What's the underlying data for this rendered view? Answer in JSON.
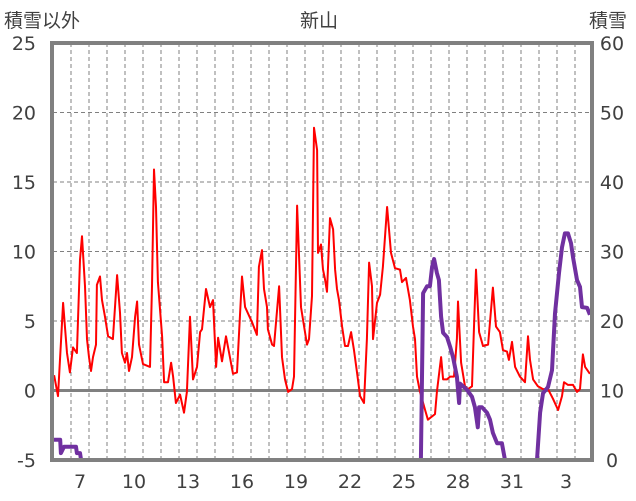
{
  "chart_data": {
    "type": "line",
    "title": "新山",
    "ylabel_left": "積雪以外",
    "ylabel_right": "積雪",
    "xlim": [
      6,
      36
    ],
    "ylim_left": [
      -5,
      25
    ],
    "ylim_right": [
      0,
      60
    ],
    "yticks_left": [
      "25",
      "20",
      "15",
      "10",
      "5",
      "0",
      "-5"
    ],
    "yticks_right": [
      "60",
      "50",
      "40",
      "30",
      "20",
      "10",
      "0"
    ],
    "xticks": [
      {
        "day": 7,
        "label": "7"
      },
      {
        "day": 10,
        "label": "10"
      },
      {
        "day": 13,
        "label": "13"
      },
      {
        "day": 16,
        "label": "16"
      },
      {
        "day": 19,
        "label": "19"
      },
      {
        "day": 22,
        "label": "22"
      },
      {
        "day": 25,
        "label": "25"
      },
      {
        "day": 28,
        "label": "28"
      },
      {
        "day": 31,
        "label": "31"
      },
      {
        "day": 34,
        "label": "3"
      }
    ],
    "grid": true,
    "colors": {
      "other": "#ff0000",
      "snow": "#7030a0",
      "frame": "#808080",
      "grid": "#808080"
    },
    "series": [
      {
        "name": "積雪以外",
        "axis": "left",
        "points": [
          [
            6.06,
            1.1
          ],
          [
            6.28,
            -0.4
          ],
          [
            6.56,
            6.3
          ],
          [
            6.78,
            2.7
          ],
          [
            6.94,
            1.3
          ],
          [
            7.11,
            3.1
          ],
          [
            7.33,
            2.7
          ],
          [
            7.5,
            9.4
          ],
          [
            7.61,
            11.1
          ],
          [
            7.78,
            7.5
          ],
          [
            7.89,
            3.7
          ],
          [
            8.0,
            2.4
          ],
          [
            8.11,
            1.4
          ],
          [
            8.22,
            2.4
          ],
          [
            8.39,
            3.3
          ],
          [
            8.44,
            7.6
          ],
          [
            8.61,
            8.2
          ],
          [
            8.72,
            6.5
          ],
          [
            8.89,
            5.3
          ],
          [
            9.06,
            3.9
          ],
          [
            9.33,
            3.7
          ],
          [
            9.56,
            8.3
          ],
          [
            9.72,
            5.6
          ],
          [
            9.83,
            2.7
          ],
          [
            10.0,
            2.0
          ],
          [
            10.11,
            2.7
          ],
          [
            10.22,
            1.4
          ],
          [
            10.39,
            2.4
          ],
          [
            10.56,
            5.3
          ],
          [
            10.67,
            6.4
          ],
          [
            10.78,
            3.3
          ],
          [
            11.0,
            1.9
          ],
          [
            11.39,
            1.7
          ],
          [
            11.5,
            7.5
          ],
          [
            11.61,
            15.9
          ],
          [
            11.72,
            13.2
          ],
          [
            11.83,
            7.8
          ],
          [
            12.06,
            3.9
          ],
          [
            12.17,
            0.6
          ],
          [
            12.39,
            0.6
          ],
          [
            12.56,
            2.0
          ],
          [
            12.67,
            1.0
          ],
          [
            12.83,
            -0.9
          ],
          [
            13.06,
            -0.3
          ],
          [
            13.28,
            -1.6
          ],
          [
            13.44,
            -0.1
          ],
          [
            13.61,
            5.3
          ],
          [
            13.78,
            0.8
          ],
          [
            14.0,
            1.7
          ],
          [
            14.17,
            4.2
          ],
          [
            14.28,
            4.4
          ],
          [
            14.5,
            7.3
          ],
          [
            14.72,
            6.0
          ],
          [
            14.89,
            6.5
          ],
          [
            15.06,
            1.7
          ],
          [
            15.17,
            3.8
          ],
          [
            15.39,
            2.1
          ],
          [
            15.61,
            3.9
          ],
          [
            15.83,
            2.4
          ],
          [
            16.0,
            1.2
          ],
          [
            16.22,
            1.3
          ],
          [
            16.5,
            8.2
          ],
          [
            16.67,
            6.0
          ],
          [
            17.06,
            4.9
          ],
          [
            17.33,
            4.0
          ],
          [
            17.44,
            8.9
          ],
          [
            17.61,
            10.1
          ],
          [
            17.72,
            7.3
          ],
          [
            17.89,
            6.0
          ],
          [
            17.94,
            4.4
          ],
          [
            18.17,
            3.3
          ],
          [
            18.28,
            3.2
          ],
          [
            18.56,
            7.5
          ],
          [
            18.72,
            2.4
          ],
          [
            18.89,
            0.8
          ],
          [
            19.06,
            -0.1
          ],
          [
            19.28,
            0.1
          ],
          [
            19.39,
            1.0
          ],
          [
            19.56,
            13.3
          ],
          [
            19.78,
            6.0
          ],
          [
            20.0,
            4.2
          ],
          [
            20.11,
            3.3
          ],
          [
            20.22,
            3.7
          ],
          [
            20.39,
            6.8
          ],
          [
            20.5,
            18.9
          ],
          [
            20.67,
            17.3
          ],
          [
            20.72,
            9.9
          ],
          [
            20.89,
            10.5
          ],
          [
            21.0,
            8.7
          ],
          [
            21.11,
            8.0
          ],
          [
            21.22,
            7.1
          ],
          [
            21.39,
            12.4
          ],
          [
            21.56,
            11.6
          ],
          [
            21.67,
            8.7
          ],
          [
            21.78,
            7.3
          ],
          [
            21.89,
            6.5
          ],
          [
            22.06,
            4.6
          ],
          [
            22.22,
            3.2
          ],
          [
            22.39,
            3.2
          ],
          [
            22.56,
            4.2
          ],
          [
            22.72,
            2.9
          ],
          [
            22.89,
            1.3
          ],
          [
            23.06,
            -0.4
          ],
          [
            23.28,
            -0.9
          ],
          [
            23.44,
            3.7
          ],
          [
            23.56,
            9.2
          ],
          [
            23.72,
            7.5
          ],
          [
            23.78,
            3.7
          ],
          [
            24.0,
            6.3
          ],
          [
            24.17,
            6.9
          ],
          [
            24.33,
            8.9
          ],
          [
            24.56,
            13.2
          ],
          [
            24.78,
            9.9
          ],
          [
            25.0,
            8.8
          ],
          [
            25.28,
            8.7
          ],
          [
            25.39,
            7.8
          ],
          [
            25.61,
            8.1
          ],
          [
            25.83,
            6.5
          ],
          [
            26.0,
            4.6
          ],
          [
            26.11,
            3.7
          ],
          [
            26.22,
            1.0
          ],
          [
            26.39,
            -0.1
          ],
          [
            26.67,
            -1.4
          ],
          [
            26.83,
            -2.1
          ],
          [
            27.22,
            -1.7
          ],
          [
            27.33,
            -0.1
          ],
          [
            27.56,
            2.4
          ],
          [
            27.67,
            0.8
          ],
          [
            27.89,
            0.8
          ],
          [
            28.06,
            1.0
          ],
          [
            28.28,
            1.0
          ],
          [
            28.44,
            3.7
          ],
          [
            28.5,
            6.4
          ],
          [
            28.67,
            2.0
          ],
          [
            28.89,
            0.3
          ],
          [
            29.06,
            0.1
          ],
          [
            29.28,
            0.3
          ],
          [
            29.39,
            4.6
          ],
          [
            29.5,
            8.7
          ],
          [
            29.67,
            4.2
          ],
          [
            29.89,
            3.2
          ],
          [
            30.17,
            3.3
          ],
          [
            30.44,
            7.4
          ],
          [
            30.61,
            4.6
          ],
          [
            30.83,
            4.2
          ],
          [
            31.0,
            2.9
          ],
          [
            31.22,
            2.8
          ],
          [
            31.33,
            2.2
          ],
          [
            31.5,
            3.5
          ],
          [
            31.67,
            1.7
          ],
          [
            31.94,
            1.0
          ],
          [
            32.22,
            0.6
          ],
          [
            32.39,
            3.9
          ],
          [
            32.5,
            2.2
          ],
          [
            32.67,
            0.8
          ],
          [
            32.94,
            0.3
          ],
          [
            33.22,
            0.1
          ],
          [
            33.5,
            0.1
          ],
          [
            33.78,
            -0.6
          ],
          [
            34.06,
            -1.4
          ],
          [
            34.28,
            -0.4
          ],
          [
            34.39,
            0.6
          ],
          [
            34.61,
            0.4
          ],
          [
            34.89,
            0.4
          ],
          [
            35.11,
            -0.1
          ],
          [
            35.28,
            0.1
          ],
          [
            35.44,
            2.6
          ],
          [
            35.56,
            1.7
          ],
          [
            35.83,
            1.2
          ]
        ]
      },
      {
        "name": "積雪",
        "axis": "right",
        "points": [
          [
            6.0,
            2.9
          ],
          [
            6.4,
            2.9
          ],
          [
            6.44,
            1.0
          ],
          [
            6.61,
            1.9
          ],
          [
            7.28,
            1.9
          ],
          [
            7.33,
            1.0
          ],
          [
            7.5,
            1.0
          ],
          [
            7.56,
            0
          ],
          [
            26.44,
            0
          ],
          [
            26.56,
            24.0
          ],
          [
            26.78,
            25.0
          ],
          [
            26.94,
            25.0
          ],
          [
            27.06,
            27.8
          ],
          [
            27.17,
            28.9
          ],
          [
            27.33,
            26.9
          ],
          [
            27.44,
            25.9
          ],
          [
            27.56,
            20.6
          ],
          [
            27.67,
            18.3
          ],
          [
            27.89,
            17.7
          ],
          [
            28.06,
            16.3
          ],
          [
            28.22,
            14.8
          ],
          [
            28.44,
            12.0
          ],
          [
            28.56,
            8.2
          ],
          [
            28.61,
            11.0
          ],
          [
            29.0,
            10.1
          ],
          [
            29.28,
            9.1
          ],
          [
            29.44,
            7.6
          ],
          [
            29.6,
            4.7
          ],
          [
            29.67,
            7.6
          ],
          [
            29.83,
            7.6
          ],
          [
            30.11,
            6.8
          ],
          [
            30.28,
            5.8
          ],
          [
            30.44,
            3.9
          ],
          [
            30.67,
            2.4
          ],
          [
            30.94,
            2.4
          ],
          [
            31.11,
            0
          ],
          [
            32.89,
            0
          ],
          [
            33.06,
            6.8
          ],
          [
            33.22,
            9.6
          ],
          [
            33.5,
            10.5
          ],
          [
            33.72,
            12.9
          ],
          [
            33.89,
            21.1
          ],
          [
            34.0,
            24.0
          ],
          [
            34.11,
            26.9
          ],
          [
            34.28,
            30.6
          ],
          [
            34.44,
            32.6
          ],
          [
            34.61,
            32.6
          ],
          [
            34.78,
            31.2
          ],
          [
            34.89,
            29.2
          ],
          [
            35.11,
            25.9
          ],
          [
            35.28,
            24.9
          ],
          [
            35.39,
            22.0
          ],
          [
            35.67,
            21.9
          ],
          [
            35.83,
            20.9
          ]
        ]
      }
    ]
  }
}
